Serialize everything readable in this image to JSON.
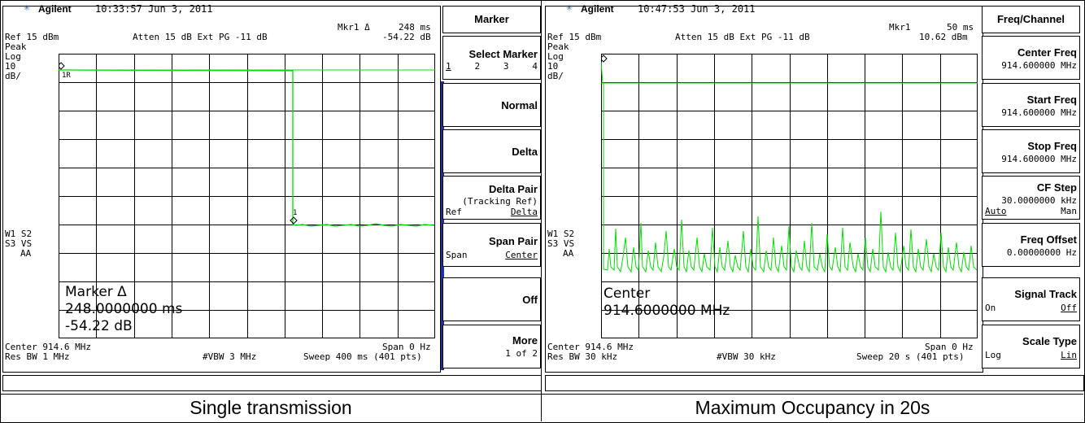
{
  "captions": {
    "left": "Single transmission",
    "right": "Maximum Occupancy in 20s"
  },
  "left": {
    "brand": "Agilent",
    "time": "10:33:57  Jun 3, 2011",
    "marker_top": "Mkr1 Δ",
    "marker_top_val1": "248 ms",
    "marker_top_val2": "-54.22 dB",
    "ref": "Ref 15 dBm",
    "atten": "Atten 15 dB  Ext PG -11 dB",
    "peak": "Peak",
    "log": "Log",
    "scale_num": "10",
    "scale_unit": "dB/",
    "w1s2": "W1  S2",
    "s3vs": "S3  VS",
    "aa": "AA",
    "marker_label_1r": "1R",
    "marker_label_1": "1",
    "big_marker_title": "Marker Δ",
    "big_marker_val1": "248.0000000 ms",
    "big_marker_val2": "-54.22 dB",
    "center": "Center 914.6 MHz",
    "span": "Span 0 Hz",
    "res_bw": "Res BW 1 MHz",
    "vbw": "#VBW 3 MHz",
    "sweep": "Sweep 400 ms (401 pts)",
    "softkeys": {
      "title": "Marker",
      "select_marker": "Select Marker",
      "select_opts": [
        "1",
        "2",
        "3",
        "4"
      ],
      "normal": "Normal",
      "delta": "Delta",
      "delta_pair": "Delta Pair",
      "tracking_ref": "(Tracking Ref)",
      "ref": "Ref",
      "delta_sub": "Delta",
      "span_pair": "Span Pair",
      "span": "Span",
      "center": "Center",
      "off": "Off",
      "more": "More",
      "more_sub": "1 of 2"
    }
  },
  "right": {
    "brand": "Agilent",
    "time": "10:47:53  Jun 3, 2011",
    "marker_top": "Mkr1",
    "marker_top_val1": "50 ms",
    "marker_top_val2": "10.62 dBm",
    "ref": "Ref 15 dBm",
    "atten": "Atten 15 dB  Ext PG -11 dB",
    "peak": "Peak",
    "log": "Log",
    "scale_num": "10",
    "scale_unit": "dB/",
    "w1s2": "W1  S2",
    "s3vs": "S3  VS",
    "aa": "AA",
    "big_marker_title": "Center",
    "big_marker_val1": "914.6000000 MHz",
    "center": "Center 914.6 MHz",
    "span": "Span 0 Hz",
    "res_bw": "Res BW 30 kHz",
    "vbw": "#VBW 30 kHz",
    "sweep": "Sweep 20 s (401 pts)",
    "softkeys": {
      "title": "Freq/Channel",
      "center_freq": "Center Freq",
      "center_freq_val": "914.600000 MHz",
      "start_freq": "Start Freq",
      "start_freq_val": "914.600000 MHz",
      "stop_freq": "Stop Freq",
      "stop_freq_val": "914.600000 MHz",
      "cf_step": "CF Step",
      "cf_step_val": "30.0000000 kHz",
      "auto": "Auto",
      "man": "Man",
      "freq_offset": "Freq Offset",
      "freq_offset_val": "0.00000000 Hz",
      "signal_track": "Signal Track",
      "on": "On",
      "off": "Off",
      "scale_type": "Scale Type",
      "log": "Log",
      "lin": "Lin"
    }
  },
  "colors": {
    "trace": "#00e000",
    "accent": "#1c2fa8",
    "logo_star": "#3a6fb0"
  }
}
